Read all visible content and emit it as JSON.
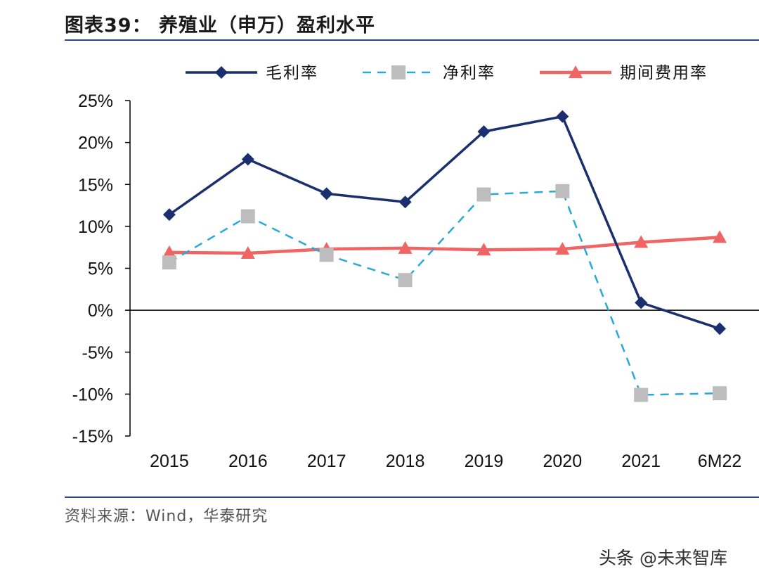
{
  "header": {
    "title": "图表39： 养殖业（申万）盈利水平"
  },
  "footer": {
    "source": "资料来源：Wind，华泰研究"
  },
  "watermark": {
    "prefix": "头条",
    "brand": "@未来智库"
  },
  "colors": {
    "gross": "#1b2f6e",
    "net": "#29a9d8",
    "net_marker": "#bdbdbd",
    "expense": "#f06464",
    "axis": "#000000"
  },
  "chart_data": {
    "type": "line",
    "title": "",
    "xlabel": "",
    "ylabel": "",
    "categories": [
      "2015",
      "2016",
      "2017",
      "2018",
      "2019",
      "2020",
      "2021",
      "6M22"
    ],
    "ylim": [
      -15,
      25
    ],
    "yticks": [
      25,
      20,
      15,
      10,
      5,
      0,
      -5,
      -10,
      -15
    ],
    "ytick_labels": [
      "25%",
      "20%",
      "15%",
      "10%",
      "5%",
      "0%",
      "-5%",
      "-10%",
      "-15%"
    ],
    "legend_position": "top",
    "series": [
      {
        "name": "毛利率",
        "key": "gross",
        "style": "solid",
        "marker": "diamond",
        "values": [
          11.4,
          18.0,
          13.9,
          12.9,
          21.3,
          23.1,
          0.9,
          -2.2
        ]
      },
      {
        "name": "净利率",
        "key": "net",
        "style": "dashed",
        "marker": "square",
        "values": [
          5.7,
          11.2,
          6.6,
          3.6,
          13.8,
          14.2,
          -10.1,
          -9.9
        ]
      },
      {
        "name": "期间费用率",
        "key": "expense",
        "style": "solid",
        "marker": "triangle",
        "values": [
          6.9,
          6.8,
          7.3,
          7.4,
          7.2,
          7.3,
          8.1,
          8.7
        ]
      }
    ]
  }
}
